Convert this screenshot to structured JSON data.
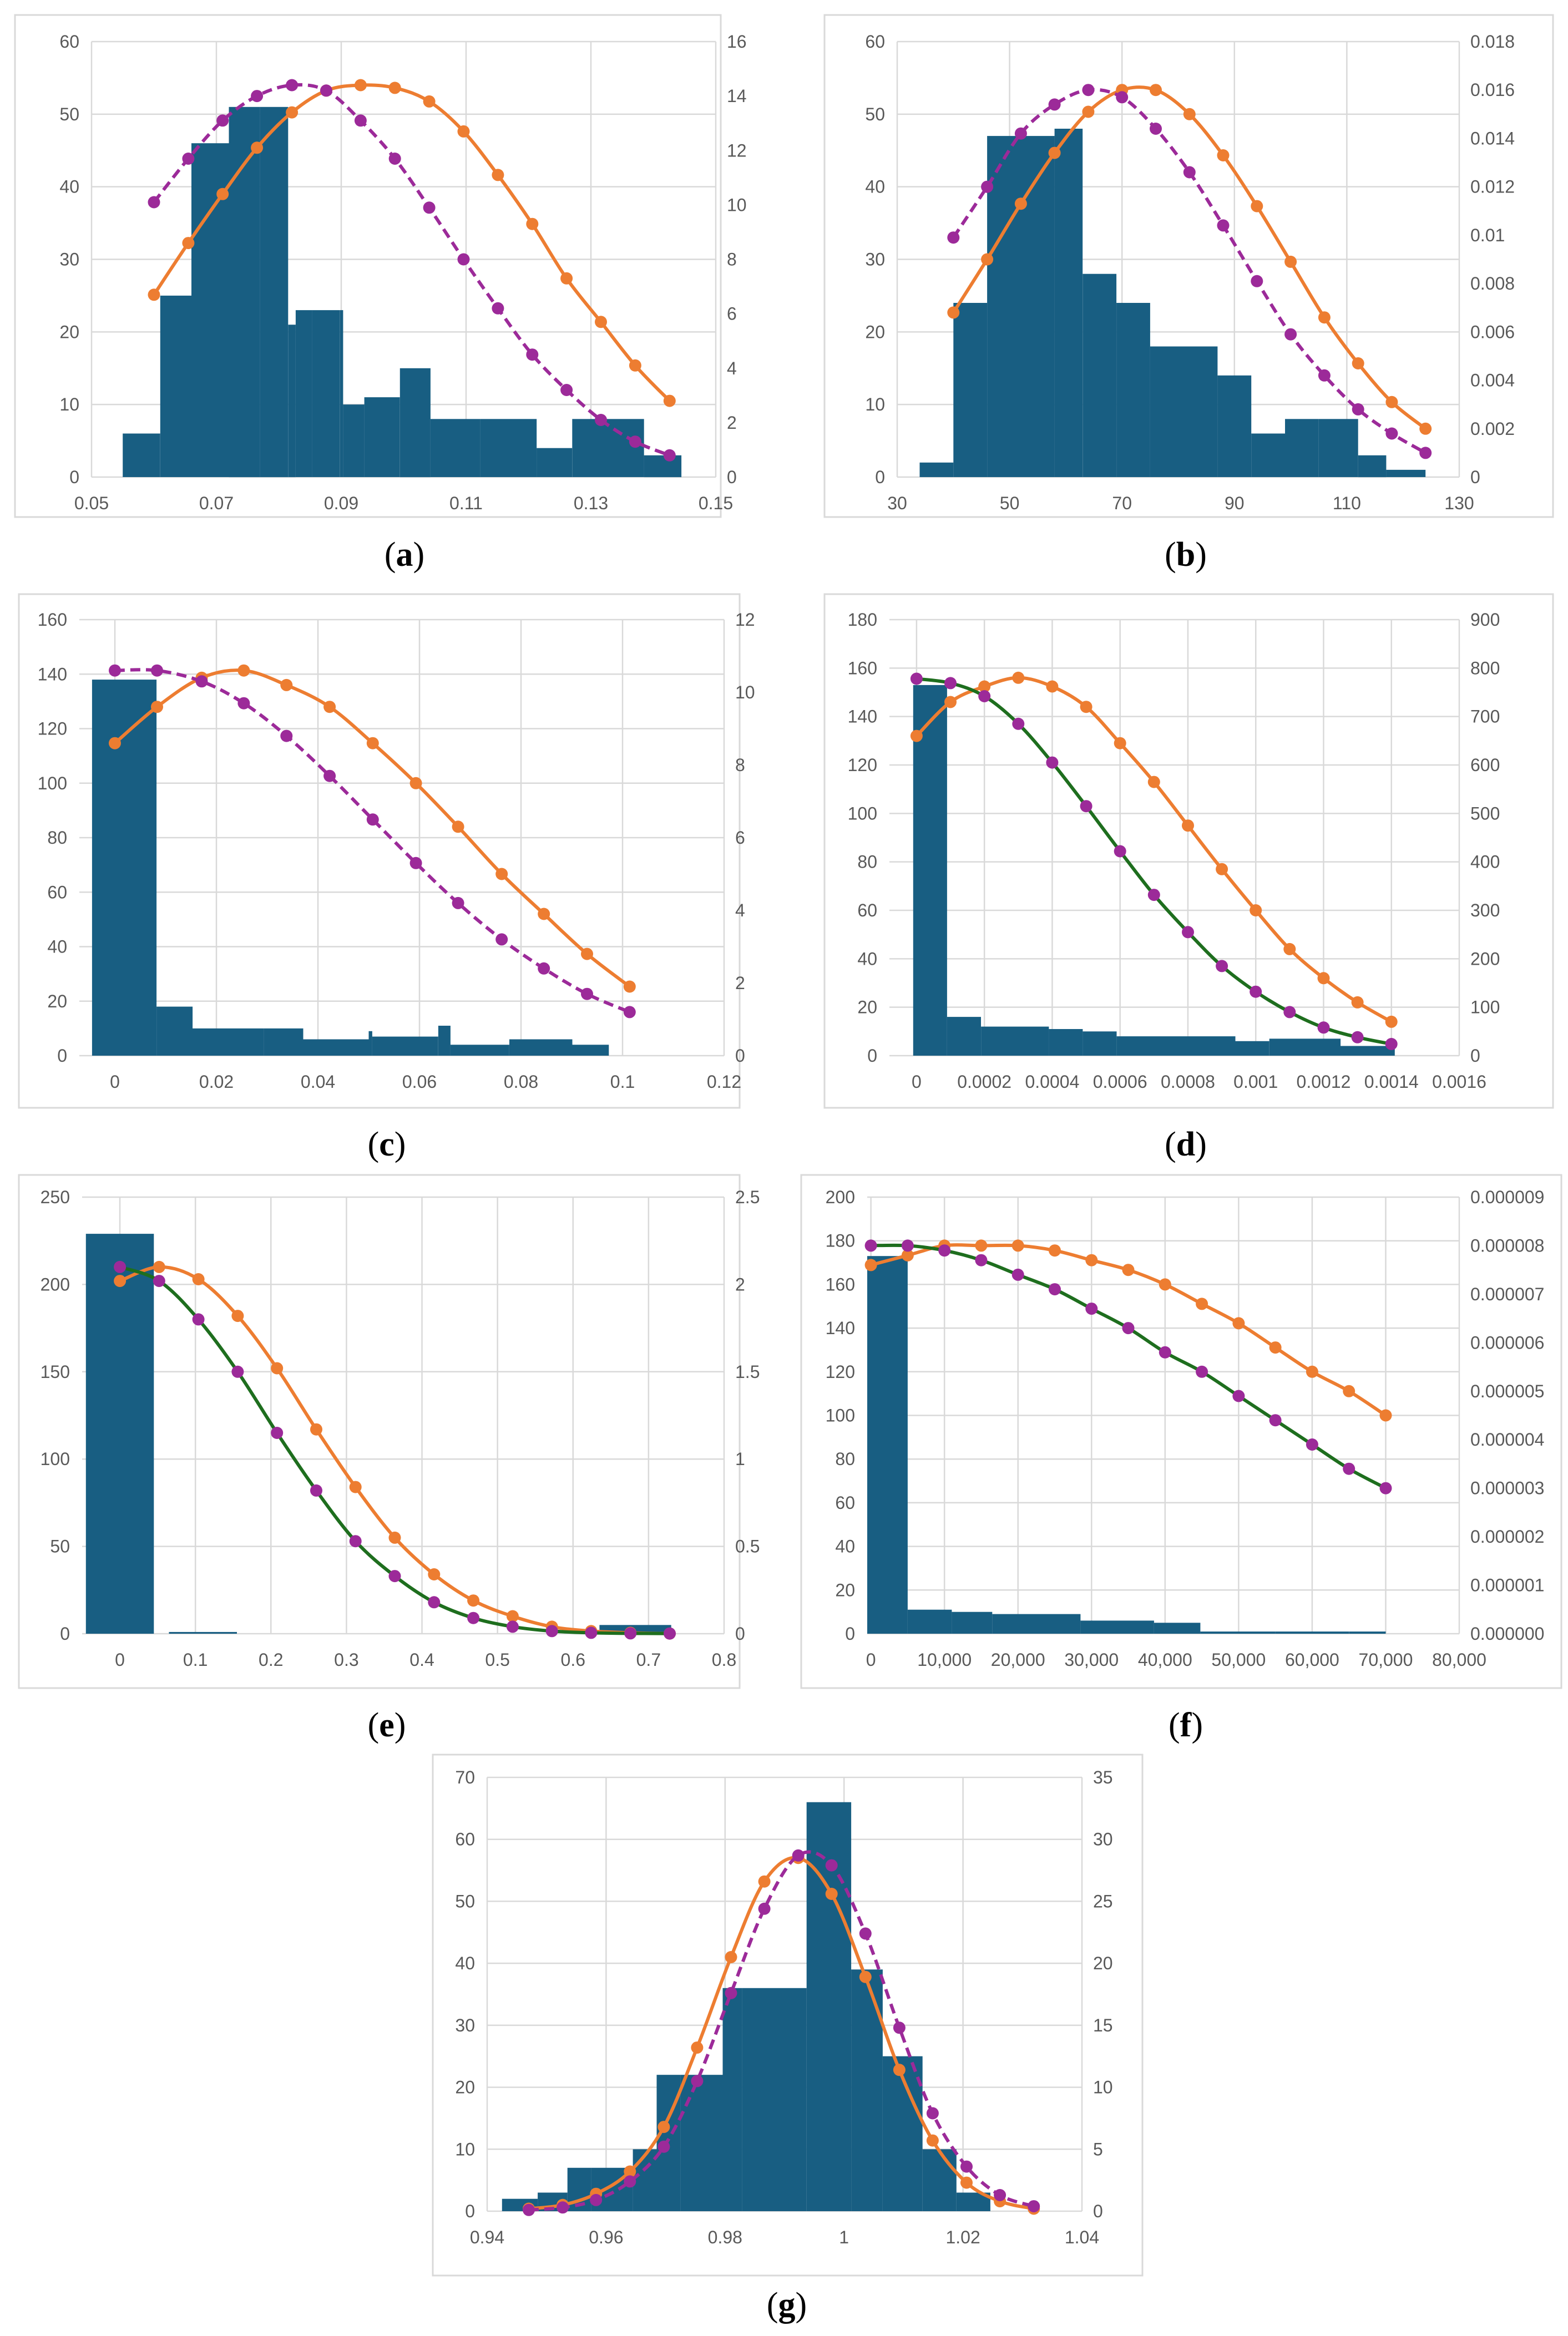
{
  "colors": {
    "bar": "#185e82",
    "orange": "#ed7d31",
    "purple": "#9c2a99",
    "green": "#1e6e1e",
    "grid": "#d9d9d9",
    "tick": "#595959"
  },
  "chart_data": [
    {
      "type": "bar",
      "caption": "a",
      "x_range": [
        0.05,
        0.15
      ],
      "x_ticks": [
        "0.05",
        "0.07",
        "0.09",
        "0.11",
        "0.13",
        "0.15"
      ],
      "y_left_range": [
        0,
        60
      ],
      "y_left_ticks": [
        "0",
        "10",
        "20",
        "30",
        "40",
        "50",
        "60"
      ],
      "y_right_range": [
        0,
        16
      ],
      "y_right_ticks": [
        "0",
        "2",
        "4",
        "6",
        "8",
        "10",
        "12",
        "14",
        "16"
      ],
      "histogram": {
        "edges": [
          0.055,
          0.061,
          0.066,
          0.072,
          0.077,
          0.0815,
          0.0827,
          0.0853,
          0.0898,
          0.0903,
          0.0937,
          0.0994,
          0.1043,
          0.1123,
          0.1213,
          0.127,
          0.1385,
          0.1445
        ],
        "counts": [
          6,
          25,
          46,
          51,
          51,
          21,
          23,
          23,
          23,
          10,
          11,
          15,
          8,
          8,
          4,
          8,
          3
        ]
      },
      "series": [
        {
          "name": "fit-solid",
          "color": "orange",
          "dash": false,
          "axis": "right",
          "x": [
            0.06,
            0.0655,
            0.071,
            0.0765,
            0.0821,
            0.0876,
            0.0931,
            0.0986,
            0.1041,
            0.1096,
            0.1151,
            0.1206,
            0.1261,
            0.1316,
            0.1371,
            0.1426
          ],
          "y": [
            6.7,
            8.6,
            10.4,
            12.1,
            13.4,
            14.2,
            14.4,
            14.3,
            13.8,
            12.7,
            11.1,
            9.3,
            7.3,
            5.7,
            4.1,
            2.8
          ]
        },
        {
          "name": "fit-dashed",
          "color": "purple",
          "dash": true,
          "axis": "right",
          "x": [
            0.06,
            0.0655,
            0.071,
            0.0765,
            0.0821,
            0.0876,
            0.0931,
            0.0986,
            0.1041,
            0.1096,
            0.1151,
            0.1206,
            0.1261,
            0.1316,
            0.1371,
            0.1426
          ],
          "y": [
            10.1,
            11.7,
            13.1,
            14.0,
            14.4,
            14.2,
            13.1,
            11.7,
            9.9,
            8.0,
            6.2,
            4.5,
            3.2,
            2.1,
            1.3,
            0.8
          ]
        }
      ]
    },
    {
      "type": "bar",
      "caption": "b",
      "x_range": [
        30,
        130
      ],
      "x_ticks": [
        "30",
        "50",
        "70",
        "90",
        "110",
        "130"
      ],
      "y_left_range": [
        0,
        60
      ],
      "y_left_ticks": [
        "0",
        "10",
        "20",
        "30",
        "40",
        "50",
        "60"
      ],
      "y_right_range": [
        0,
        0.018
      ],
      "y_right_ticks": [
        "0",
        "0.002",
        "0.004",
        "0.006",
        "0.008",
        "0.01",
        "0.012",
        "0.014",
        "0.016",
        "0.018"
      ],
      "histogram": {
        "edges": [
          34,
          40,
          46,
          53,
          58,
          63,
          69,
          75,
          80,
          87,
          93,
          99,
          105,
          112,
          117,
          124
        ],
        "counts": [
          2,
          24,
          47,
          47,
          48,
          28,
          24,
          18,
          18,
          14,
          6,
          8,
          8,
          3,
          1
        ]
      },
      "series": [
        {
          "name": "fit-solid",
          "color": "orange",
          "dash": false,
          "axis": "right",
          "x": [
            40,
            46,
            52,
            58,
            64,
            70,
            76,
            82,
            88,
            94,
            100,
            106,
            112,
            118,
            124
          ],
          "y": [
            0.0068,
            0.009,
            0.0113,
            0.0134,
            0.0151,
            0.016,
            0.016,
            0.015,
            0.0133,
            0.0112,
            0.0089,
            0.0066,
            0.0047,
            0.0031,
            0.002
          ]
        },
        {
          "name": "fit-dashed",
          "color": "purple",
          "dash": true,
          "axis": "right",
          "x": [
            40,
            46,
            52,
            58,
            64,
            70,
            76,
            82,
            88,
            94,
            100,
            106,
            112,
            118,
            124
          ],
          "y": [
            0.0099,
            0.012,
            0.0142,
            0.0154,
            0.016,
            0.0157,
            0.0144,
            0.0126,
            0.0104,
            0.0081,
            0.0059,
            0.0042,
            0.0028,
            0.0018,
            0.001
          ]
        }
      ]
    },
    {
      "type": "bar",
      "caption": "c",
      "x_range": [
        -0.007,
        0.12
      ],
      "x_ticks": [
        "0",
        "0.02",
        "0.04",
        "0.06",
        "0.08",
        "0.1",
        "0.12"
      ],
      "x_tick_values": [
        0,
        0.02,
        0.04,
        0.06,
        0.08,
        0.1,
        0.12
      ],
      "y_left_range": [
        0,
        160
      ],
      "y_left_ticks": [
        "0",
        "20",
        "40",
        "60",
        "80",
        "100",
        "120",
        "140",
        "160"
      ],
      "y_right_range": [
        0,
        12
      ],
      "y_right_ticks": [
        "0",
        "2",
        "4",
        "6",
        "8",
        "10",
        "12"
      ],
      "histogram": {
        "edges": [
          -0.0045,
          0.0082,
          0.0153,
          0.0293,
          0.0371,
          0.05,
          0.0507,
          0.0637,
          0.0661,
          0.0777,
          0.0901,
          0.0973
        ],
        "counts": [
          138,
          18,
          10,
          10,
          6,
          9,
          7,
          11,
          4,
          6,
          4
        ]
      },
      "series": [
        {
          "name": "fit-solid",
          "color": "orange",
          "dash": false,
          "axis": "right",
          "x": [
            0,
            0.0083,
            0.0171,
            0.0254,
            0.0338,
            0.0423,
            0.0508,
            0.0593,
            0.0676,
            0.0762,
            0.0845,
            0.093,
            0.1014
          ],
          "y": [
            8.6,
            9.6,
            10.4,
            10.6,
            10.2,
            9.6,
            8.6,
            7.5,
            6.3,
            5.0,
            3.9,
            2.8,
            1.9
          ]
        },
        {
          "name": "fit-dashed",
          "color": "purple",
          "dash": true,
          "axis": "right",
          "x": [
            0,
            0.0083,
            0.0171,
            0.0254,
            0.0338,
            0.0423,
            0.0508,
            0.0593,
            0.0676,
            0.0762,
            0.0845,
            0.093,
            0.1014
          ],
          "y": [
            10.6,
            10.6,
            10.3,
            9.7,
            8.8,
            7.7,
            6.5,
            5.3,
            4.2,
            3.2,
            2.4,
            1.7,
            1.2
          ]
        }
      ]
    },
    {
      "type": "bar",
      "caption": "d",
      "x_range": [
        -8e-05,
        0.0016
      ],
      "x_ticks": [
        "0",
        "0.0002",
        "0.0004",
        "0.0006",
        "0.0008",
        "0.001",
        "0.0012",
        "0.0014",
        "0.0016"
      ],
      "x_tick_values": [
        0,
        0.0002,
        0.0004,
        0.0006,
        0.0008,
        0.001,
        0.0012,
        0.0014,
        0.0016
      ],
      "y_left_range": [
        0,
        180
      ],
      "y_left_ticks": [
        "0",
        "20",
        "40",
        "60",
        "80",
        "100",
        "120",
        "140",
        "160",
        "180"
      ],
      "y_right_range": [
        0,
        900
      ],
      "y_right_ticks": [
        "0",
        "100",
        "200",
        "300",
        "400",
        "500",
        "600",
        "700",
        "800",
        "900"
      ],
      "histogram": {
        "edges": [
          -1e-05,
          9e-05,
          0.00019,
          0.00039,
          0.00049,
          0.00059,
          0.00076,
          0.00094,
          0.00104,
          0.00125,
          0.00141
        ],
        "counts": [
          153,
          16,
          12,
          11,
          10,
          8,
          8,
          6,
          7,
          4
        ]
      },
      "series": [
        {
          "name": "fit-orange",
          "color": "orange",
          "dash": false,
          "axis": "right",
          "x": [
            0,
            0.0001,
            0.0002,
            0.0003,
            0.0004,
            0.0005,
            0.0006,
            0.0007,
            0.0008,
            0.0009,
            0.001,
            0.0011,
            0.0012,
            0.0013,
            0.0014
          ],
          "y": [
            660,
            730,
            762,
            780,
            762,
            720,
            645,
            565,
            475,
            385,
            300,
            220,
            160,
            110,
            70
          ]
        },
        {
          "name": "fit-green",
          "color": "green",
          "dash": false,
          "axis": "right",
          "markers": "purple",
          "x": [
            0,
            0.0001,
            0.0002,
            0.0003,
            0.0004,
            0.0005,
            0.0006,
            0.0007,
            0.0008,
            0.0009,
            0.001,
            0.0011,
            0.0012,
            0.0013,
            0.0014
          ],
          "y": [
            778,
            769,
            742,
            685,
            605,
            515,
            422,
            332,
            255,
            185,
            132,
            90,
            58,
            38,
            24
          ]
        }
      ]
    },
    {
      "type": "bar",
      "caption": "e",
      "x_range": [
        -0.05,
        0.8
      ],
      "x_ticks": [
        "0",
        "0.1",
        "0.2",
        "0.3",
        "0.4",
        "0.5",
        "0.6",
        "0.7",
        "0.8"
      ],
      "x_tick_values": [
        0,
        0.1,
        0.2,
        0.3,
        0.4,
        0.5,
        0.6,
        0.7,
        0.8
      ],
      "y_left_range": [
        0,
        250
      ],
      "y_left_ticks": [
        "0",
        "50",
        "100",
        "150",
        "200",
        "250"
      ],
      "y_right_range": [
        0,
        2.5
      ],
      "y_right_ticks": [
        "0",
        "0.5",
        "1",
        "1.5",
        "2",
        "2.5"
      ],
      "histogram": {
        "edges": [
          -0.045,
          0.045,
          0.065,
          0.155,
          0.635,
          0.73
        ],
        "counts": [
          229,
          0,
          1,
          0,
          5
        ]
      },
      "series": [
        {
          "name": "fit-orange",
          "color": "orange",
          "dash": false,
          "axis": "right",
          "x": [
            0,
            0.052,
            0.104,
            0.156,
            0.208,
            0.26,
            0.312,
            0.364,
            0.416,
            0.468,
            0.52,
            0.572,
            0.624,
            0.676,
            0.728
          ],
          "y": [
            2.02,
            2.1,
            2.03,
            1.82,
            1.52,
            1.17,
            0.84,
            0.55,
            0.34,
            0.19,
            0.1,
            0.04,
            0.015,
            0.005,
            0.001
          ]
        },
        {
          "name": "fit-green",
          "color": "green",
          "dash": false,
          "axis": "right",
          "markers": "purple",
          "x": [
            0,
            0.052,
            0.104,
            0.156,
            0.208,
            0.26,
            0.312,
            0.364,
            0.416,
            0.468,
            0.52,
            0.572,
            0.624,
            0.676,
            0.728
          ],
          "y": [
            2.1,
            2.02,
            1.8,
            1.5,
            1.15,
            0.82,
            0.53,
            0.33,
            0.18,
            0.09,
            0.04,
            0.015,
            0.005,
            0.002,
            0.001
          ]
        }
      ]
    },
    {
      "type": "bar",
      "caption": "f",
      "x_range": [
        -500,
        80000
      ],
      "x_ticks": [
        "0",
        "10,000",
        "20,000",
        "30,000",
        "40,000",
        "50,000",
        "60,000",
        "70,000",
        "80,000"
      ],
      "x_tick_values": [
        0,
        10000,
        20000,
        30000,
        40000,
        50000,
        60000,
        70000,
        80000
      ],
      "y_left_range": [
        0,
        200
      ],
      "y_left_ticks": [
        "0",
        "20",
        "40",
        "60",
        "80",
        "100",
        "120",
        "140",
        "160",
        "180",
        "200"
      ],
      "y_right_range": [
        0,
        9e-06
      ],
      "y_right_ticks": [
        "0.000000",
        "0.000001",
        "0.000002",
        "0.000003",
        "0.000004",
        "0.000005",
        "0.000006",
        "0.000007",
        "0.000008",
        "0.000009"
      ],
      "histogram": {
        "edges": [
          -500,
          5000,
          11000,
          16500,
          28500,
          38500,
          44800,
          55000,
          65000,
          70000
        ],
        "counts": [
          173,
          11,
          10,
          9,
          6,
          5,
          1,
          1,
          1
        ]
      },
      "series": [
        {
          "name": "fit-orange",
          "color": "orange",
          "dash": false,
          "axis": "right",
          "x": [
            0,
            5000,
            10000,
            15000,
            20000,
            25000,
            30000,
            35000,
            40000,
            45000,
            50000,
            55000,
            60000,
            65000,
            70000
          ],
          "y": [
            7.6e-06,
            7.8e-06,
            8e-06,
            8e-06,
            8e-06,
            7.9e-06,
            7.7e-06,
            7.5e-06,
            7.2e-06,
            6.8e-06,
            6.4e-06,
            5.9e-06,
            5.4e-06,
            5e-06,
            4.5e-06
          ]
        },
        {
          "name": "fit-green",
          "color": "green",
          "dash": false,
          "axis": "right",
          "markers": "purple",
          "x": [
            0,
            5000,
            10000,
            15000,
            20000,
            25000,
            30000,
            35000,
            40000,
            45000,
            50000,
            55000,
            60000,
            65000,
            70000
          ],
          "y": [
            8e-06,
            8e-06,
            7.9e-06,
            7.7e-06,
            7.4e-06,
            7.1e-06,
            6.7e-06,
            6.3e-06,
            5.8e-06,
            5.4e-06,
            4.9e-06,
            4.4e-06,
            3.9e-06,
            3.4e-06,
            3e-06
          ]
        }
      ]
    },
    {
      "type": "bar",
      "caption": "g",
      "x_range": [
        0.94,
        1.04
      ],
      "x_ticks": [
        "0.94",
        "0.96",
        "0.98",
        "1",
        "1.02",
        "1.04"
      ],
      "y_left_range": [
        0,
        70
      ],
      "y_left_ticks": [
        "0",
        "10",
        "20",
        "30",
        "40",
        "50",
        "60",
        "70"
      ],
      "y_right_range": [
        0,
        35
      ],
      "y_right_ticks": [
        "0",
        "5",
        "10",
        "15",
        "20",
        "25",
        "30",
        "35"
      ],
      "histogram": {
        "edges": [
          0.9425,
          0.9485,
          0.9535,
          0.9575,
          0.9645,
          0.9685,
          0.9725,
          0.9796,
          0.9829,
          0.9937,
          1.0012,
          1.0065,
          1.0132,
          1.0189,
          1.0246
        ],
        "counts": [
          2,
          3,
          7,
          7,
          10,
          22,
          22,
          36,
          36,
          66,
          39,
          25,
          10,
          3
        ]
      },
      "series": [
        {
          "name": "fit-solid",
          "color": "orange",
          "dash": false,
          "axis": "right",
          "x": [
            0.947,
            0.9527,
            0.9583,
            0.964,
            0.9697,
            0.9753,
            0.981,
            0.9866,
            0.9923,
            0.9979,
            1.0036,
            1.0093,
            1.0149,
            1.0206,
            1.0262,
            1.0319
          ],
          "y": [
            0.2,
            0.5,
            1.4,
            3.2,
            6.8,
            13.2,
            20.5,
            26.6,
            28.5,
            25.6,
            18.9,
            11.4,
            5.7,
            2.3,
            0.8,
            0.2
          ]
        },
        {
          "name": "fit-dashed",
          "color": "purple",
          "dash": true,
          "axis": "right",
          "x": [
            0.947,
            0.9527,
            0.9583,
            0.964,
            0.9697,
            0.9753,
            0.981,
            0.9866,
            0.9923,
            0.9979,
            1.0036,
            1.0093,
            1.0149,
            1.0206,
            1.0262,
            1.0319
          ],
          "y": [
            0.1,
            0.3,
            0.9,
            2.4,
            5.2,
            10.5,
            17.6,
            24.4,
            28.7,
            27.9,
            22.4,
            14.8,
            7.9,
            3.6,
            1.3,
            0.4
          ]
        }
      ]
    }
  ]
}
